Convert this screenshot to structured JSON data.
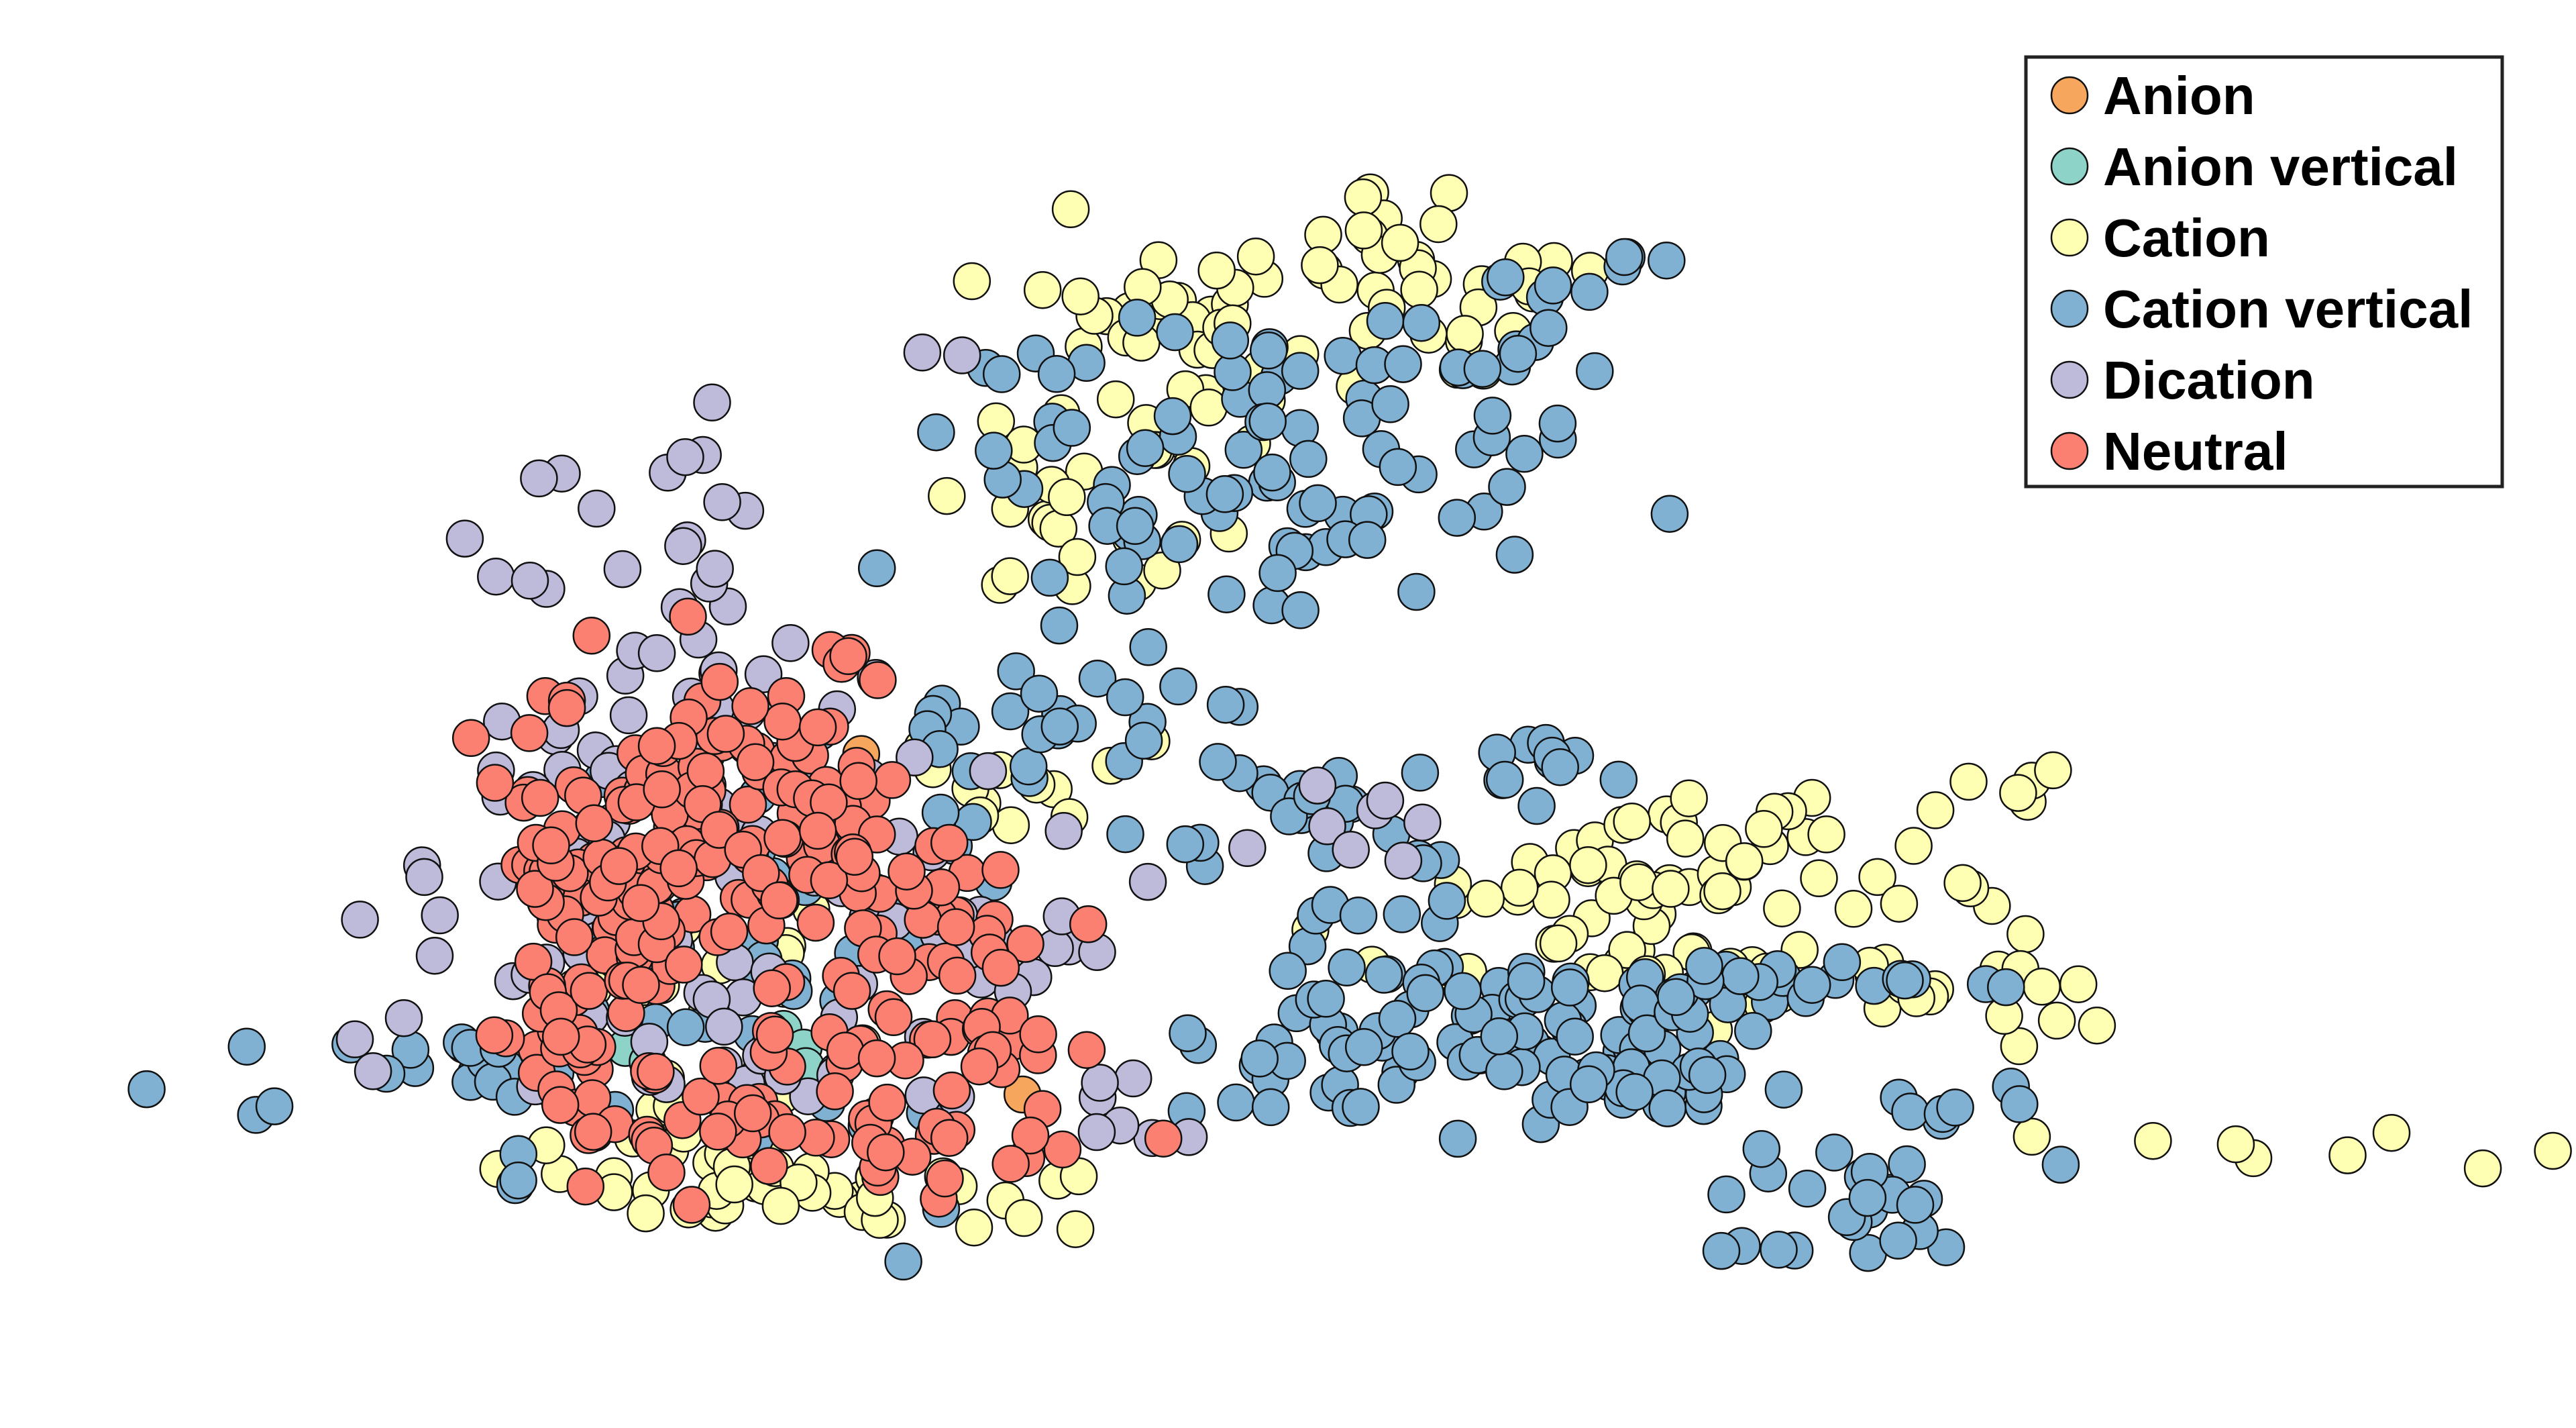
{
  "chart_data": {
    "type": "scatter",
    "title": "",
    "xlabel": "",
    "ylabel": "",
    "axes_visible": false,
    "grid": false,
    "legend_position": "top-right",
    "xlim": [
      0,
      100
    ],
    "ylim": [
      0,
      100
    ],
    "series": [
      {
        "name": "Anion",
        "color": "#f7a65d",
        "clusters": [
          {
            "center": [
              23.0,
              49.0
            ],
            "spread": [
              0.6,
              1.0
            ],
            "count": 2
          },
          {
            "center": [
              29.5,
              48.0
            ],
            "spread": [
              0.4,
              0.4
            ],
            "count": 1
          },
          {
            "center": [
              36.6,
              22.0
            ],
            "spread": [
              0.4,
              0.4
            ],
            "count": 1
          }
        ]
      },
      {
        "name": "Anion vertical",
        "color": "#8dd3c7",
        "clusters": [
          {
            "center": [
              28.0,
              26.0
            ],
            "spread": [
              1.2,
              1.2
            ],
            "count": 4
          },
          {
            "center": [
              21.0,
              24.5
            ],
            "spread": [
              0.8,
              0.8
            ],
            "count": 2
          }
        ]
      },
      {
        "name": "Cation",
        "color": "#ffffb3",
        "clusters": [
          {
            "center": [
              44.0,
              80.0
            ],
            "spread": [
              3.5,
              4.0
            ],
            "count": 40
          },
          {
            "center": [
              39.5,
              66.0
            ],
            "spread": [
              3.0,
              4.0
            ],
            "count": 25
          },
          {
            "center": [
              51.0,
              86.0
            ],
            "spread": [
              2.5,
              2.5
            ],
            "count": 14
          },
          {
            "center": [
              57.0,
              84.0
            ],
            "spread": [
              2.5,
              4.0
            ],
            "count": 18
          },
          {
            "center": [
              61.0,
              37.0
            ],
            "spread": [
              4.5,
              2.5
            ],
            "count": 30
          },
          {
            "center": [
              72.0,
              39.5
            ],
            "spread": [
              5.0,
              2.5
            ],
            "count": 32
          },
          {
            "center": [
              80.5,
              44.5
            ],
            "spread": [
              1.0,
              1.0
            ],
            "count": 4
          },
          {
            "center": [
              67.0,
              31.5
            ],
            "spread": [
              6.0,
              1.0
            ],
            "count": 22
          },
          {
            "center": [
              76.0,
              28.5
            ],
            "spread": [
              6.0,
              1.2
            ],
            "count": 16
          },
          {
            "center": [
              90.0,
              18.0
            ],
            "spread": [
              7.0,
              1.2
            ],
            "count": 8
          },
          {
            "center": [
              19.5,
              18.0
            ],
            "spread": [
              3.5,
              1.5
            ],
            "count": 12
          },
          {
            "center": [
              28.5,
              14.5
            ],
            "spread": [
              5.0,
              1.4
            ],
            "count": 40
          },
          {
            "center": [
              22.0,
              29.0
            ],
            "spread": [
              4.5,
              5.5
            ],
            "count": 25
          },
          {
            "center": [
              35.0,
              44.0
            ],
            "spread": [
              3.0,
              3.0
            ],
            "count": 12
          }
        ]
      },
      {
        "name": "Cation vertical",
        "color": "#80b1d3",
        "clusters": [
          {
            "center": [
              47.0,
              69.0
            ],
            "spread": [
              7.0,
              6.0
            ],
            "count": 90
          },
          {
            "center": [
              57.5,
              80.5
            ],
            "spread": [
              2.5,
              2.5
            ],
            "count": 14
          },
          {
            "center": [
              63.5,
              85.0
            ],
            "spread": [
              1.0,
              0.8
            ],
            "count": 4
          },
          {
            "center": [
              38.0,
              49.0
            ],
            "spread": [
              4.0,
              3.5
            ],
            "count": 30
          },
          {
            "center": [
              50.0,
              42.5
            ],
            "spread": [
              4.0,
              3.0
            ],
            "count": 22
          },
          {
            "center": [
              59.5,
              47.5
            ],
            "spread": [
              2.5,
              1.0
            ],
            "count": 10
          },
          {
            "center": [
              54.0,
              26.0
            ],
            "spread": [
              4.0,
              4.0
            ],
            "count": 60
          },
          {
            "center": [
              61.0,
              27.0
            ],
            "spread": [
              4.0,
              3.0
            ],
            "count": 28
          },
          {
            "center": [
              64.5,
              25.0
            ],
            "spread": [
              3.0,
              3.5
            ],
            "count": 35
          },
          {
            "center": [
              71.5,
              30.0
            ],
            "spread": [
              4.0,
              1.0
            ],
            "count": 18
          },
          {
            "center": [
              73.5,
              13.5
            ],
            "spread": [
              5.0,
              2.5
            ],
            "count": 25
          },
          {
            "center": [
              77.0,
              21.0
            ],
            "spread": [
              2.0,
              1.0
            ],
            "count": 7
          },
          {
            "center": [
              51.0,
              36.0
            ],
            "spread": [
              2.0,
              0.8
            ],
            "count": 6
          },
          {
            "center": [
              12.0,
              24.0
            ],
            "spread": [
              6.5,
              2.0
            ],
            "count": 25
          },
          {
            "center": [
              25.0,
              33.0
            ],
            "spread": [
              5.5,
              9.0
            ],
            "count": 45
          }
        ]
      },
      {
        "name": "Dication",
        "color": "#bebada",
        "clusters": [
          {
            "center": [
              23.0,
              51.0
            ],
            "spread": [
              4.5,
              8.0
            ],
            "count": 45
          },
          {
            "center": [
              20.5,
              36.0
            ],
            "spread": [
              5.5,
              6.5
            ],
            "count": 50
          },
          {
            "center": [
              35.0,
              38.0
            ],
            "spread": [
              3.5,
              4.0
            ],
            "count": 20
          },
          {
            "center": [
              29.0,
              27.0
            ],
            "spread": [
              5.0,
              3.0
            ],
            "count": 24
          },
          {
            "center": [
              18.0,
              66.0
            ],
            "spread": [
              4.5,
              3.0
            ],
            "count": 10
          },
          {
            "center": [
              33.5,
              78.5
            ],
            "spread": [
              1.0,
              0.5
            ],
            "count": 2
          },
          {
            "center": [
              15.0,
              45.0
            ],
            "spread": [
              3.0,
              3.0
            ],
            "count": 6
          },
          {
            "center": [
              51.0,
              42.5
            ],
            "spread": [
              2.5,
              1.5
            ],
            "count": 8
          },
          {
            "center": [
              42.5,
              21.0
            ],
            "spread": [
              3.5,
              1.5
            ],
            "count": 8
          }
        ]
      },
      {
        "name": "Neutral",
        "color": "#fb8072",
        "clusters": [
          {
            "center": [
              17.0,
              32.0
            ],
            "spread": [
              1.5,
              10.0
            ],
            "count": 70
          },
          {
            "center": [
              20.5,
              38.5
            ],
            "spread": [
              1.5,
              5.0
            ],
            "count": 45
          },
          {
            "center": [
              24.0,
              44.0
            ],
            "spread": [
              2.0,
              5.0
            ],
            "count": 50
          },
          {
            "center": [
              28.0,
              46.0
            ],
            "spread": [
              1.8,
              5.5
            ],
            "count": 40
          },
          {
            "center": [
              32.0,
              35.5
            ],
            "spread": [
              3.5,
              3.5
            ],
            "count": 35
          },
          {
            "center": [
              33.0,
              26.0
            ],
            "spread": [
              3.5,
              2.0
            ],
            "count": 28
          },
          {
            "center": [
              32.0,
              18.5
            ],
            "spread": [
              4.0,
              1.8
            ],
            "count": 30
          },
          {
            "center": [
              23.0,
              22.0
            ],
            "spread": [
              2.5,
              4.0
            ],
            "count": 20
          }
        ]
      }
    ]
  }
}
